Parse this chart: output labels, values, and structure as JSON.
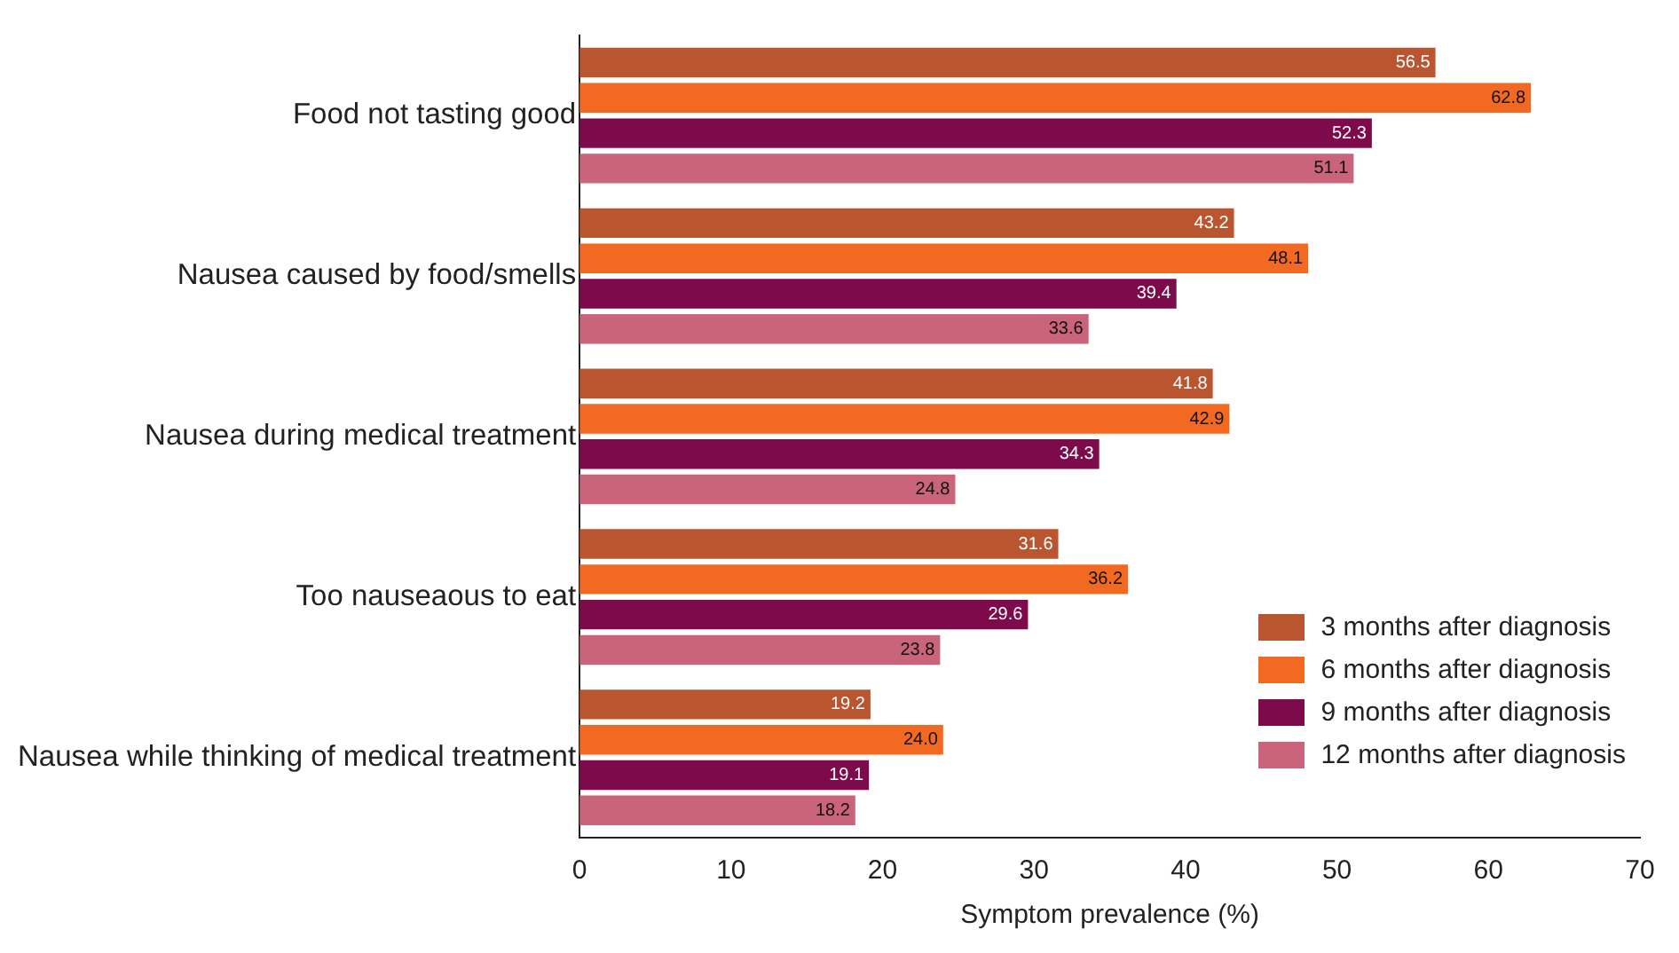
{
  "chart_data": {
    "type": "bar",
    "orientation": "horizontal",
    "xlabel": "Symptom prevalence (%)",
    "categories": [
      "Food not tasting good",
      "Nausea caused by food/smells",
      "Nausea during medical treatment",
      "Too nauseaous to eat",
      "Nausea while thinking of medical treatment"
    ],
    "series": [
      {
        "name": "3 months after diagnosis",
        "color": "#b9552f",
        "values": [
          56.5,
          43.2,
          41.8,
          31.6,
          19.2
        ],
        "value_labels": [
          "56.5",
          "43.2",
          "41.8",
          "31.6",
          "19.2"
        ]
      },
      {
        "name": "6 months after diagnosis",
        "color": "#f26a21",
        "values": [
          62.8,
          48.1,
          42.9,
          36.2,
          24.0
        ],
        "value_labels": [
          "62.8",
          "48.1",
          "42.9",
          "36.2",
          "24.0"
        ]
      },
      {
        "name": "9 months after diagnosis",
        "color": "#7d0b4c",
        "values": [
          52.3,
          39.4,
          34.3,
          29.6,
          19.1
        ],
        "value_labels": [
          "52.3",
          "39.4",
          "34.3",
          "29.6",
          "19.1"
        ]
      },
      {
        "name": "12 months after diagnosis",
        "color": "#c9647a",
        "values": [
          51.1,
          33.6,
          24.8,
          23.8,
          18.2
        ],
        "value_labels": [
          "51.1",
          "33.6",
          "24.8",
          "23.8",
          "18.2"
        ]
      }
    ],
    "xlim": [
      0,
      70
    ],
    "xticks": [
      0,
      10,
      20,
      30,
      40,
      50,
      60,
      70
    ],
    "grid": false,
    "legend": "bottom right"
  }
}
